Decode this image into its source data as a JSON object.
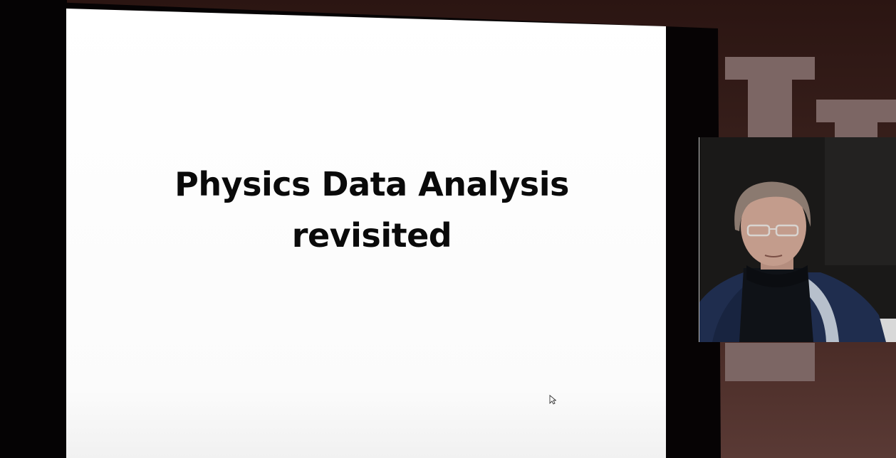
{
  "slide": {
    "title_line1": "Physics Data Analysis",
    "title_line2": "revisited"
  },
  "cursor": {
    "icon": "pointer-cursor-icon"
  },
  "webcam": {
    "icon": "presenter-video-icon"
  },
  "colors": {
    "background": "#3a211d",
    "slide": "#ffffff",
    "frame": "#060304",
    "logo": "#7c6664",
    "title_text": "#0a0a0a"
  }
}
